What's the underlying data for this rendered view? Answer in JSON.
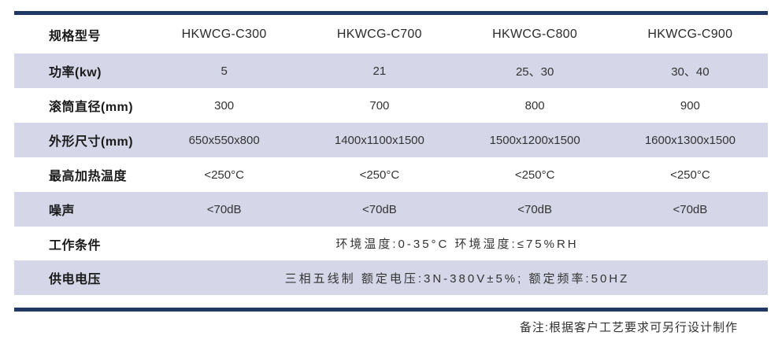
{
  "colors": {
    "navy": "#1f3864",
    "row_alt": "#d5d7e8",
    "label_text": "#1a1a1a",
    "value_text": "#333333"
  },
  "table": {
    "header": {
      "label": "规格型号",
      "models": [
        "HKWCG-C300",
        "HKWCG-C700",
        "HKWCG-C800",
        "HKWCG-C900"
      ]
    },
    "rows": [
      {
        "label": "功率(kw)",
        "values": [
          "5",
          "21",
          "25、30",
          "30、40"
        ]
      },
      {
        "label": "滚筒直径(mm)",
        "values": [
          "300",
          "700",
          "800",
          "900"
        ]
      },
      {
        "label": "外形尺寸(mm)",
        "values": [
          "650x550x800",
          "1400x1100x1500",
          "1500x1200x1500",
          "1600x1300x1500"
        ]
      },
      {
        "label": "最高加热温度",
        "values": [
          "<250°C",
          "<250°C",
          "<250°C",
          "<250°C"
        ]
      },
      {
        "label": "噪声",
        "values": [
          "<70dB",
          "<70dB",
          "<70dB",
          "<70dB"
        ]
      },
      {
        "label": "工作条件",
        "merged_value": "环境温度:0-35°C 环境湿度:≤75%RH"
      },
      {
        "label": "供电电压",
        "merged_value": "三相五线制 额定电压:3N-380V±5%; 额定频率:50HZ"
      }
    ]
  },
  "footer": {
    "note": "备注:根据客户工艺要求可另行设计制作"
  }
}
